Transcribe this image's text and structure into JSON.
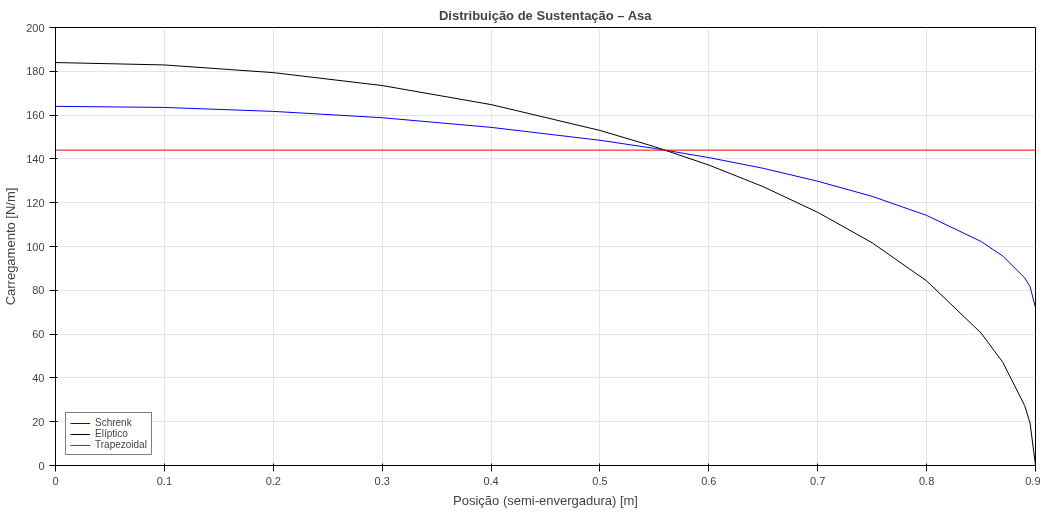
{
  "chart_data": {
    "type": "line",
    "title": "Distribuição de Sustentação – Asa",
    "xlabel": "Posição (semi-envergadura) [m]",
    "ylabel": "Carregamento [N/m]",
    "x": [
      0,
      0.1,
      0.2,
      0.3,
      0.4,
      0.5,
      0.55,
      0.6,
      0.65,
      0.7,
      0.75,
      0.8,
      0.85,
      0.87,
      0.89,
      0.895,
      0.9
    ],
    "series": [
      {
        "name": "Schrenk",
        "color": "#0000ff",
        "values": [
          164,
          163.5,
          161.7,
          158.8,
          154.4,
          148.5,
          144.8,
          140.6,
          135.7,
          129.8,
          122.9,
          114.2,
          102.3,
          95.6,
          85.7,
          81.7,
          72
        ]
      },
      {
        "name": "Elíptico",
        "color": "#000000",
        "values": [
          184,
          182.9,
          179.4,
          173.5,
          164.8,
          153,
          145.6,
          137.2,
          127.3,
          115.6,
          101.7,
          84.3,
          60.5,
          47.1,
          27.4,
          19.4,
          0
        ]
      },
      {
        "name": "Trapezoidal",
        "color": "#ff0000",
        "x": [
          0,
          0.9
        ],
        "values": [
          144,
          144
        ]
      }
    ],
    "xlim": [
      0,
      0.9
    ],
    "ylim": [
      0,
      200
    ],
    "xticks": [
      0,
      0.1,
      0.2,
      0.3,
      0.4,
      0.5,
      0.6,
      0.7,
      0.8,
      0.9
    ],
    "yticks": [
      0,
      20,
      40,
      60,
      80,
      100,
      120,
      140,
      160,
      180,
      200
    ],
    "grid": true,
    "legend": "bottom left",
    "marker": "none",
    "line_style": "solid"
  }
}
